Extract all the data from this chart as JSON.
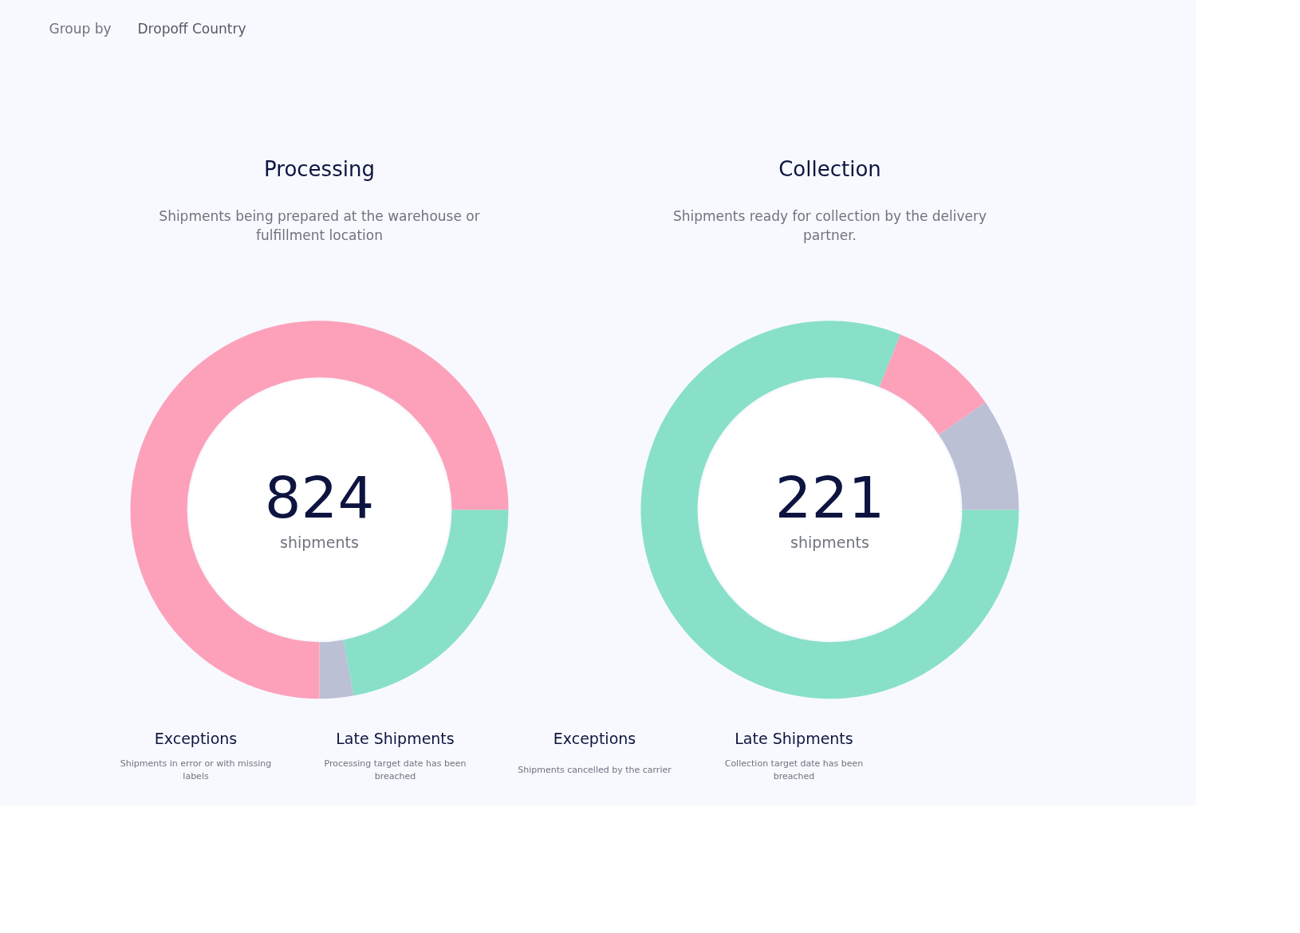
{
  "chart_data": [
    {
      "type": "other",
      "annotations": [
        "Group by",
        "Dropoff Country"
      ]
    },
    {
      "type": "donut",
      "title": "Processing",
      "subtitle": "Shipments being prepared at the warehouse or fulfillment location",
      "categories": [
        null,
        null,
        null
      ],
      "values": [
        22.1,
        2.9,
        75.0
      ],
      "colors": [
        "#88e0c9",
        "#bbc0d4",
        "#fda1bb"
      ],
      "annotations": [
        "824",
        "shipments"
      ]
    },
    {
      "type": "donut",
      "title": "Collection",
      "subtitle": "Shipments ready for collection by the delivery partner.",
      "categories": [
        null,
        null,
        null
      ],
      "values": [
        81.1,
        9.3,
        9.6
      ],
      "colors": [
        "#88e0c9",
        "#fda1bb",
        "#bbc0d4"
      ],
      "annotations": [
        "221",
        "shipments"
      ]
    },
    {
      "type": "other",
      "title": "Exceptions",
      "subtitle": "Shipments in error or with missing labels"
    },
    {
      "type": "other",
      "title": "Late Shipments",
      "subtitle": "Processing target date has been breached"
    },
    {
      "type": "other",
      "title": "Exceptions",
      "subtitle": "Shipments cancelled by the carrier"
    },
    {
      "type": "other",
      "title": "Late Shipments",
      "subtitle": "Collection target date has been breached"
    }
  ]
}
